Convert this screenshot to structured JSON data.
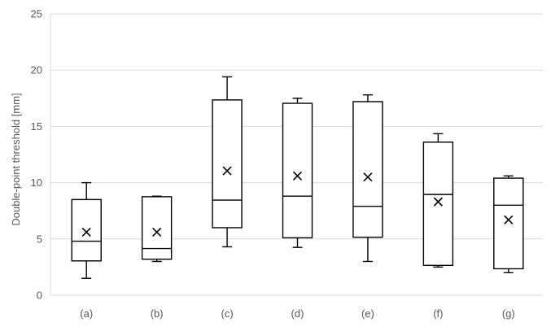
{
  "chart_data": {
    "type": "box",
    "title": "",
    "xlabel": "",
    "ylabel": "Double-point threshold [mm]",
    "ylim": [
      0,
      25
    ],
    "yticks": [
      0,
      5,
      10,
      15,
      20,
      25
    ],
    "grid": true,
    "legend": "none",
    "categories": [
      "(a)",
      "(b)",
      "(c)",
      "(d)",
      "(e)",
      "(f)",
      "(g)"
    ],
    "boxes": [
      {
        "label": "(a)",
        "min": 1.5,
        "q1": 3.05,
        "median": 4.8,
        "q3": 8.5,
        "max": 10.0,
        "mean": 5.6
      },
      {
        "label": "(b)",
        "min": 3.0,
        "q1": 3.2,
        "median": 4.15,
        "q3": 8.75,
        "max": 8.8,
        "mean": 5.6
      },
      {
        "label": "(c)",
        "min": 4.3,
        "q1": 6.0,
        "median": 8.45,
        "q3": 17.35,
        "max": 19.4,
        "mean": 11.05
      },
      {
        "label": "(d)",
        "min": 4.25,
        "q1": 5.1,
        "median": 8.8,
        "q3": 17.05,
        "max": 17.5,
        "mean": 10.6
      },
      {
        "label": "(e)",
        "min": 3.0,
        "q1": 5.15,
        "median": 7.9,
        "q3": 17.2,
        "max": 17.8,
        "mean": 10.5
      },
      {
        "label": "(f)",
        "min": 2.5,
        "q1": 2.65,
        "median": 8.95,
        "q3": 13.6,
        "max": 14.35,
        "mean": 8.3
      },
      {
        "label": "(g)",
        "min": 2.0,
        "q1": 2.35,
        "median": 8.0,
        "q3": 10.4,
        "max": 10.6,
        "mean": 6.7
      }
    ],
    "colors": {
      "box": "#000000",
      "grid": "#d9d9d9",
      "text": "#595959",
      "background": "#ffffff"
    }
  }
}
